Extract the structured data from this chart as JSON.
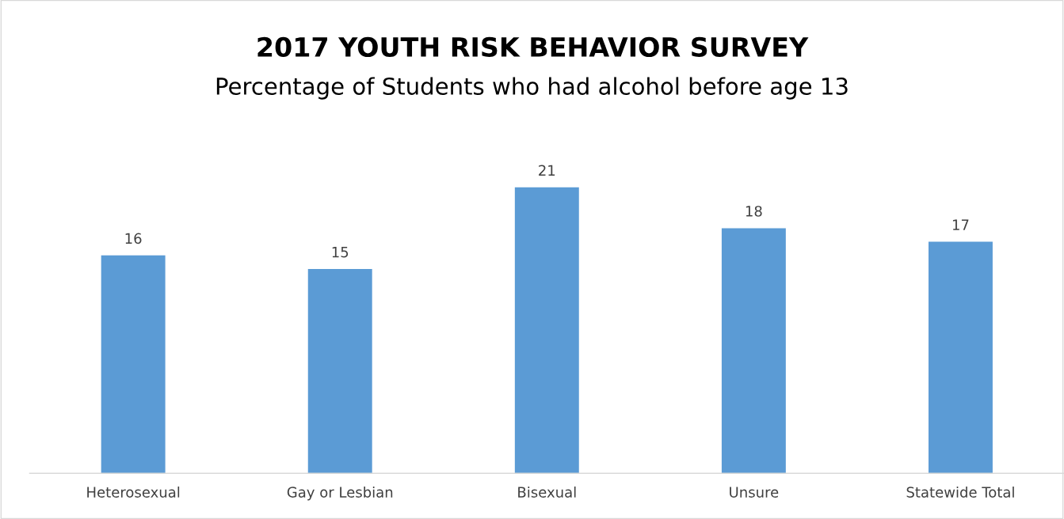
{
  "chart_data": {
    "type": "bar",
    "title": "2017 YOUTH RISK BEHAVIOR SURVEY",
    "subtitle": "Percentage of Students who had alcohol before age 13",
    "categories": [
      "Heterosexual",
      "Gay or Lesbian",
      "Bisexual",
      "Unsure",
      "Statewide Total"
    ],
    "values": [
      16,
      15,
      21,
      18,
      17
    ],
    "color": "#5b9bd5",
    "data_labels": true,
    "tick_labels": "x",
    "grid": false,
    "legend": false
  }
}
